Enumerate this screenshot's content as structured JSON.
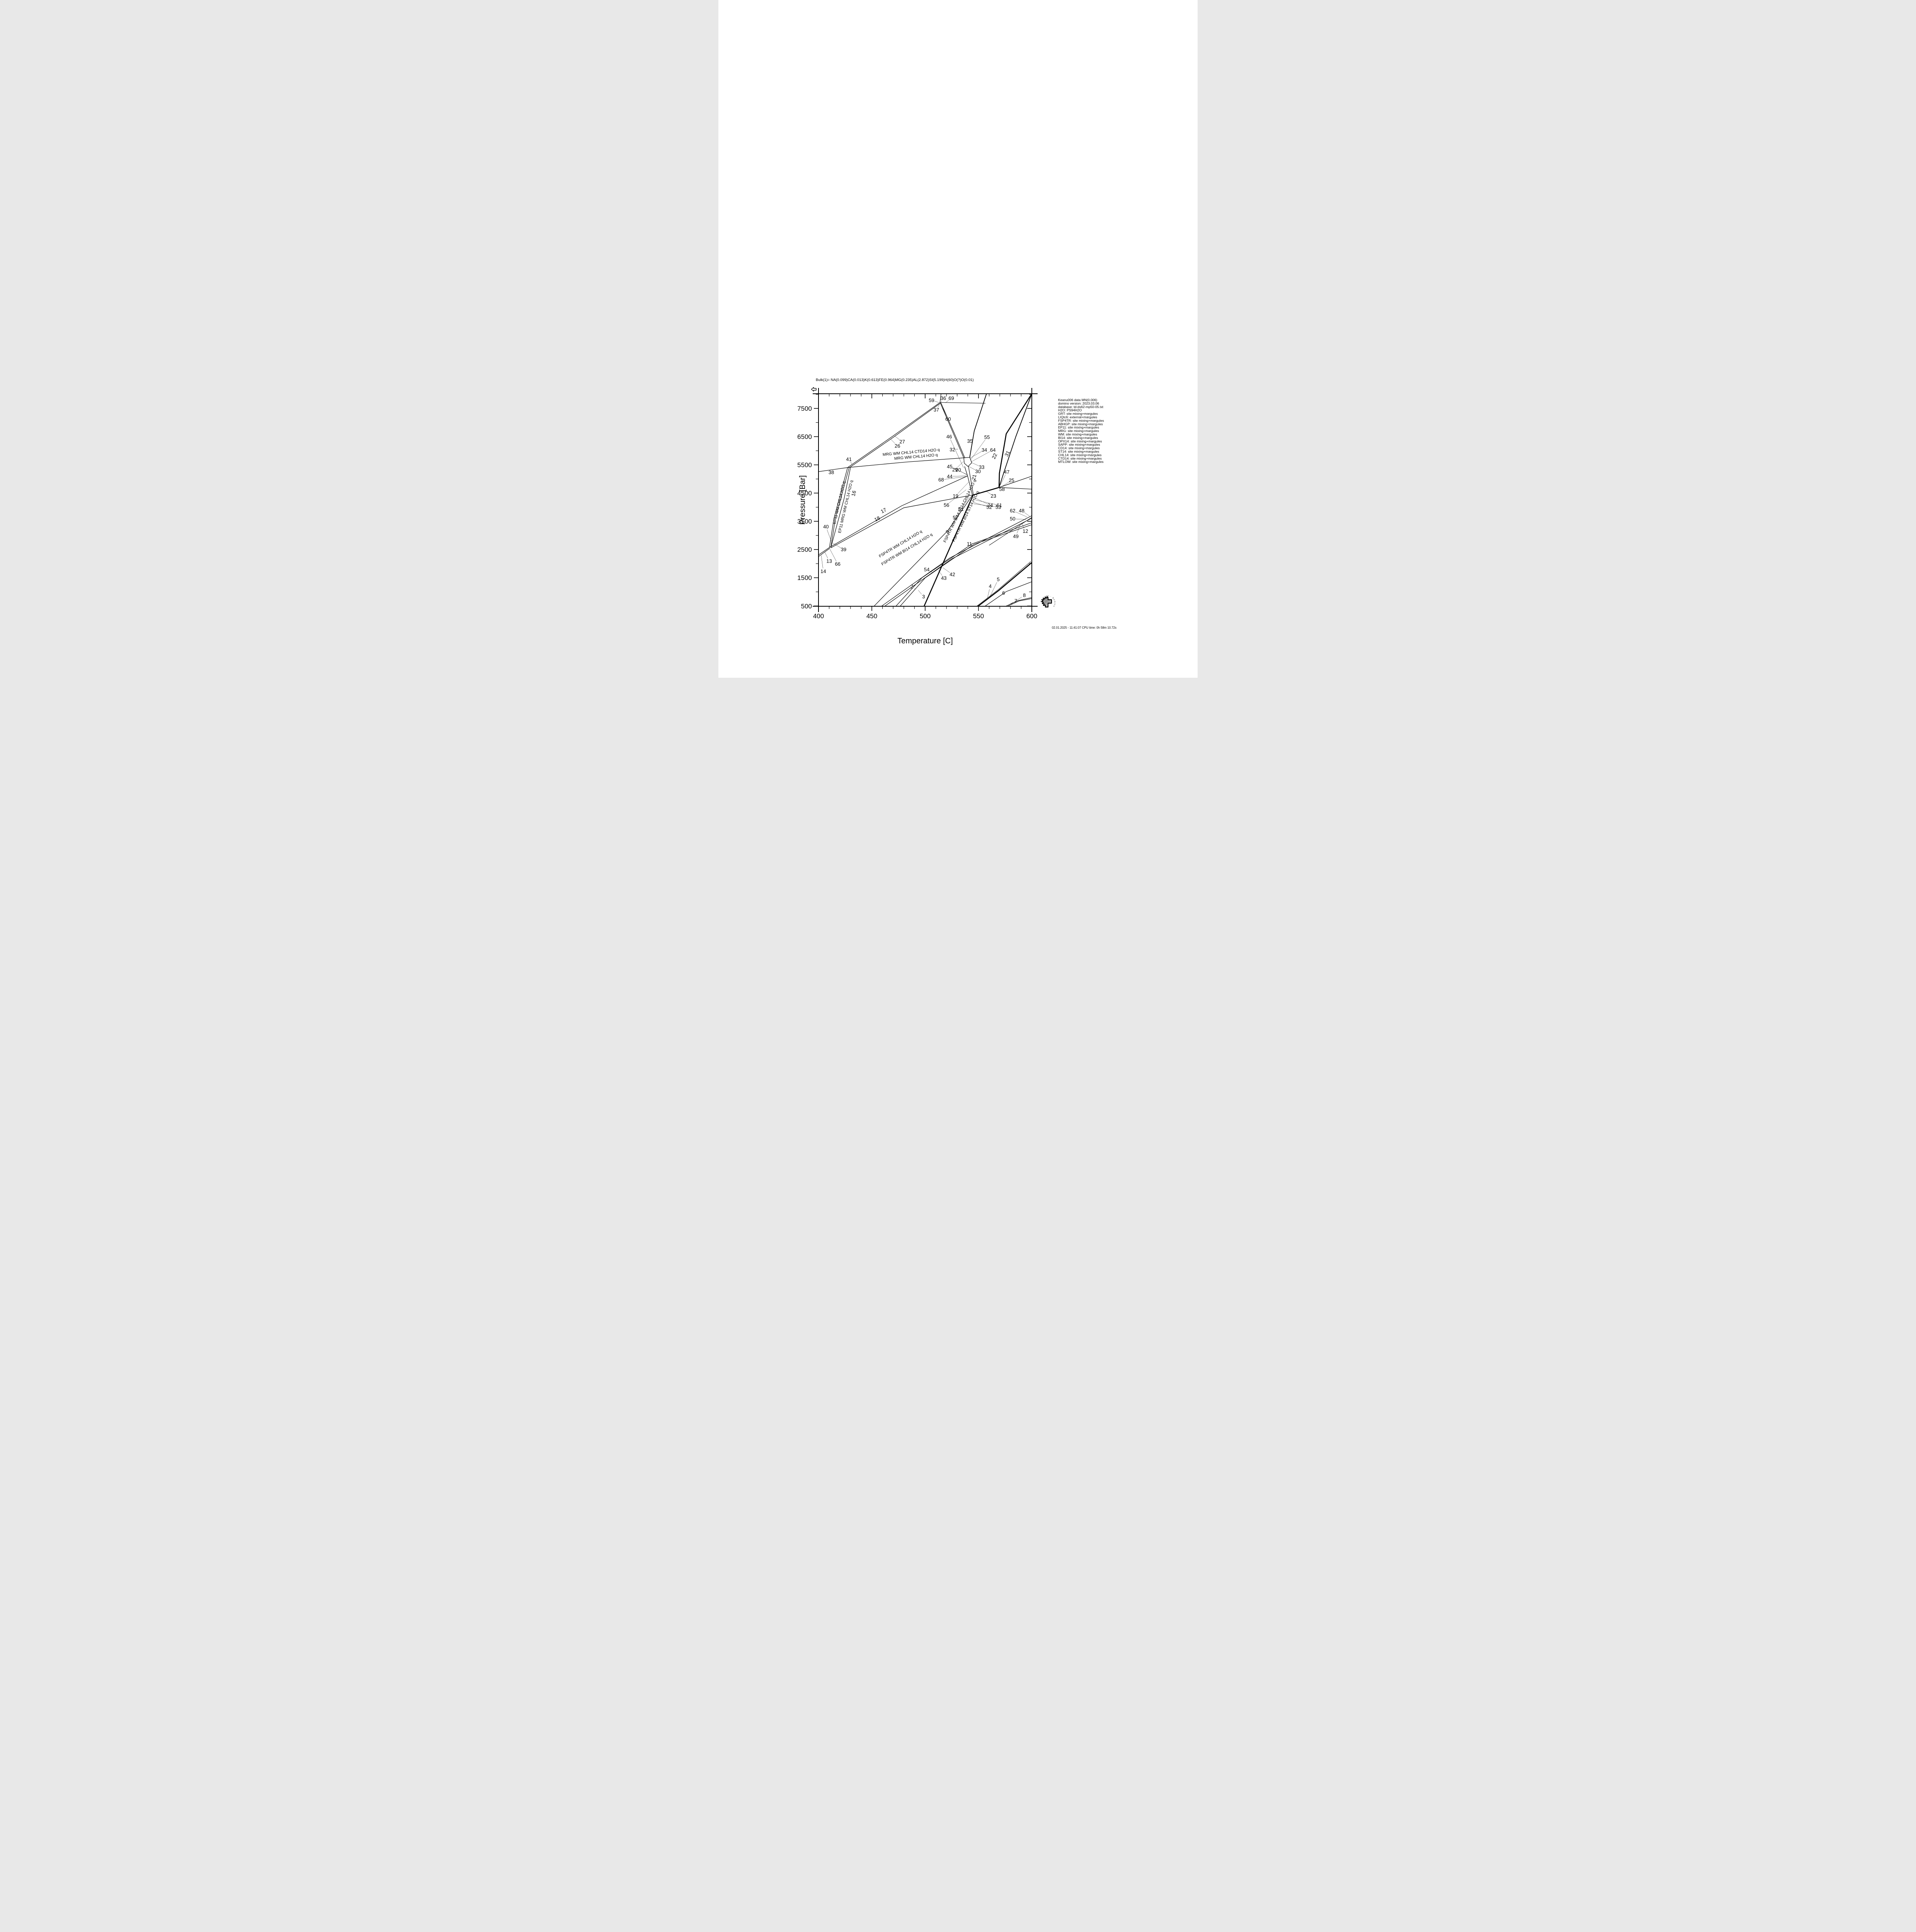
{
  "page": {
    "bg": "#ffffff",
    "ink": "#000000",
    "logo_gray": "#9a9a9a"
  },
  "title": "Bulk(1)= NA(0.099)CA(0.013)K(0.613)FE(0.964)MG(0.235)AL(2.872)SI(5.199)H(60)O(?)O(0.01)",
  "footer": "02.01.2025 - 11:41:07  CPU time:    0h 58m 10.72s",
  "logo_text": "Theriak - Domino",
  "info_panel": {
    "lines": [
      "Keanu006 data MN(0.006)",
      "domino version: 2023.03.06",
      "database: td-ds62-mp50-05.txt",
      "H2O: PS94H2O",
      "GRT: site mixing+margules",
      "LIQtc6: external+margules",
      "FSP4TR: site mixing+margules",
      "ABHGP: site mixing+margules",
      "EP11: site mixing+margules",
      "MRG: site mixing+margules",
      "WM: site mixing+margules",
      "BI14: site mixing+margules",
      "OPX14: site mixing+margules",
      "SAPP: site mixing+margules",
      "CD14: site mixing+margules",
      "ST14: site mixing+margules",
      "CHL14: site mixing+margules",
      "CTD14: site mixing+margules",
      "MTLOW: site mixing+margules"
    ]
  },
  "chart_data": {
    "type": "line",
    "title": "Bulk(1)= NA(0.099)CA(0.013)K(0.613)FE(0.964)MG(0.235)AL(2.872)SI(5.199)H(60)O(?)O(0.01)",
    "xlabel": "Temperature [C]",
    "ylabel": "Pressure [Bar]",
    "xlim": [
      400,
      600
    ],
    "ylim": [
      490,
      8020
    ],
    "x_major_ticks": [
      400,
      450,
      500,
      550,
      600
    ],
    "x_minor_step": 10,
    "y_major_ticks": [
      500,
      1500,
      2500,
      3500,
      4500,
      5500,
      6500,
      7500
    ],
    "y_minor_step": 500,
    "grid": false,
    "curves": [
      {
        "id": "l38",
        "w": 1.2,
        "pts": [
          [
            400,
            5260
          ],
          [
            427.3,
            5405
          ]
        ]
      },
      {
        "id": "s26a",
        "w": 1.2,
        "pts": [
          [
            427.3,
            5405
          ],
          [
            469,
            6500
          ],
          [
            514,
            7712
          ]
        ]
      },
      {
        "id": "s26b",
        "w": 1.2,
        "pts": [
          [
            428.6,
            5392
          ],
          [
            470.2,
            6478
          ],
          [
            514.5,
            7692
          ]
        ]
      },
      {
        "id": "ltop",
        "w": 1.2,
        "pts": [
          [
            514,
            7712
          ],
          [
            514.9,
            8020
          ]
        ]
      },
      {
        "id": "l3669",
        "w": 1,
        "pts": [
          [
            514,
            7712
          ],
          [
            556.5,
            7685
          ]
        ]
      },
      {
        "id": "l35",
        "w": 1.8,
        "pts": [
          [
            557.5,
            8020
          ],
          [
            546,
            6700
          ],
          [
            541.8,
            5770
          ]
        ]
      },
      {
        "id": "s37a",
        "w": 1.2,
        "pts": [
          [
            514,
            7712
          ],
          [
            527.5,
            6520
          ],
          [
            536.2,
            5748
          ]
        ]
      },
      {
        "id": "s37b",
        "w": 1.2,
        "pts": [
          [
            514.8,
            7698
          ],
          [
            528.6,
            6512
          ],
          [
            537.3,
            5740
          ]
        ]
      },
      {
        "id": "lmrg",
        "w": 1.2,
        "pts": [
          [
            427.3,
            5405
          ],
          [
            482,
            5600
          ],
          [
            536.2,
            5748
          ]
        ]
      },
      {
        "id": "ep11a",
        "w": 1.2,
        "pts": [
          [
            427.3,
            5405
          ],
          [
            414.5,
            3600
          ],
          [
            410.3,
            2575
          ]
        ]
      },
      {
        "id": "ep11b",
        "w": 1.2,
        "pts": [
          [
            428.7,
            5398
          ],
          [
            415.8,
            3598
          ],
          [
            411.6,
            2572
          ]
        ]
      },
      {
        "id": "l16",
        "w": 1.2,
        "pts": [
          [
            430,
            5402
          ],
          [
            424,
            4300
          ],
          [
            411.6,
            2572
          ]
        ]
      },
      {
        "id": "s13a",
        "w": 1.2,
        "pts": [
          [
            410.3,
            2575
          ],
          [
            400,
            2310
          ]
        ]
      },
      {
        "id": "s13b",
        "w": 1.2,
        "pts": [
          [
            410.6,
            2545
          ],
          [
            400,
            2250
          ]
        ]
      },
      {
        "id": "l17",
        "w": 1.2,
        "pts": [
          [
            410.3,
            2575
          ],
          [
            478,
            4050
          ],
          [
            539.8,
            5108
          ]
        ]
      },
      {
        "id": "l18",
        "w": 1.2,
        "pts": [
          [
            411.6,
            2560
          ],
          [
            480,
            3980
          ],
          [
            544.3,
            4430
          ]
        ]
      },
      {
        "id": "l44",
        "w": 1.2,
        "pts": [
          [
            539.8,
            5108
          ],
          [
            537,
            5445
          ]
        ]
      },
      {
        "id": "l19",
        "w": 1.2,
        "pts": [
          [
            539.8,
            5108
          ],
          [
            544.3,
            4430
          ]
        ]
      },
      {
        "id": "s21b",
        "w": 1.2,
        "pts": [
          [
            540.6,
            5440
          ],
          [
            545.2,
            4435
          ]
        ]
      },
      {
        "id": "pent",
        "w": 1.2,
        "closed": true,
        "pts": [
          [
            536.2,
            5748
          ],
          [
            541.8,
            5768
          ],
          [
            543.7,
            5575
          ],
          [
            540.2,
            5442
          ],
          [
            536.7,
            5558
          ]
        ]
      },
      {
        "id": "thick22",
        "w": 2.6,
        "pts": [
          [
            600,
            8020
          ],
          [
            576,
            6600
          ],
          [
            569.6,
            5200
          ],
          [
            569.3,
            4700
          ],
          [
            545,
            4432
          ],
          [
            499,
            490
          ]
        ]
      },
      {
        "id": "l31",
        "w": 1.8,
        "pts": [
          [
            600,
            8020
          ],
          [
            585,
            6500
          ],
          [
            573.5,
            5200
          ],
          [
            569.3,
            4700
          ]
        ]
      },
      {
        "id": "l47",
        "w": 1.2,
        "pts": [
          [
            569.3,
            4700
          ],
          [
            600,
            5100
          ]
        ]
      },
      {
        "id": "l25",
        "w": 1.2,
        "pts": [
          [
            569.3,
            4700
          ],
          [
            600,
            4640
          ]
        ]
      },
      {
        "id": "l9",
        "w": 1.2,
        "pts": [
          [
            452,
            490
          ],
          [
            521,
            3160
          ],
          [
            544.3,
            4425
          ]
        ]
      },
      {
        "id": "s11a",
        "w": 1.2,
        "pts": [
          [
            459,
            490
          ],
          [
            523,
            2200
          ],
          [
            600,
            3700
          ]
        ]
      },
      {
        "id": "s11b",
        "w": 1.2,
        "pts": [
          [
            462,
            490
          ],
          [
            525,
            2170
          ],
          [
            600,
            3612
          ]
        ]
      },
      {
        "id": "c1a",
        "w": 1.2,
        "pts": [
          [
            472.5,
            490
          ],
          [
            497,
            1500
          ],
          [
            544,
            2700
          ],
          [
            600,
            3450
          ]
        ]
      },
      {
        "id": "c1b",
        "w": 1.2,
        "pts": [
          [
            476.5,
            490
          ],
          [
            500,
            1495
          ],
          [
            546,
            2690
          ],
          [
            600,
            3380
          ]
        ]
      },
      {
        "id": "l49",
        "w": 1,
        "pts": [
          [
            560,
            2650
          ],
          [
            600,
            3640
          ]
        ]
      },
      {
        "id": "c45a",
        "w": 2.6,
        "pts": [
          [
            549.5,
            490
          ],
          [
            569,
            1050
          ],
          [
            600,
            2040
          ]
        ]
      },
      {
        "id": "c45b",
        "w": 1,
        "pts": [
          [
            548.3,
            490
          ],
          [
            567.8,
            1055
          ],
          [
            599,
            2075
          ]
        ]
      },
      {
        "id": "c6",
        "w": 1.2,
        "pts": [
          [
            556,
            490
          ],
          [
            576,
            1010
          ],
          [
            600,
            1360
          ]
        ]
      },
      {
        "id": "c78a",
        "w": 1.2,
        "pts": [
          [
            575.5,
            490
          ],
          [
            587,
            690
          ],
          [
            600,
            800
          ]
        ]
      },
      {
        "id": "c78b",
        "w": 1.2,
        "pts": [
          [
            577.2,
            490
          ],
          [
            588,
            678
          ],
          [
            600,
            762
          ]
        ]
      }
    ],
    "field_labels": [
      {
        "n": "59",
        "T": 506,
        "P": 7790,
        "t": [
          512.8,
          7712
        ]
      },
      {
        "n": "36",
        "T": 517,
        "P": 7862,
        "t": [
          514.8,
          7725
        ]
      },
      {
        "n": "69",
        "T": 524.5,
        "P": 7862,
        "t": [
          519,
          7698
        ]
      },
      {
        "n": "37",
        "T": 510.5,
        "P": 7450,
        "t": [
          513.4,
          7640
        ]
      },
      {
        "n": "60",
        "T": 521.5,
        "P": 7120,
        "t": [
          516.4,
          7520
        ]
      },
      {
        "n": "26",
        "T": 474,
        "P": 6170,
        "t": [
          467.5,
          6420
        ]
      },
      {
        "n": "27",
        "T": 478.5,
        "P": 6320,
        "t": [
          471.5,
          6520
        ]
      },
      {
        "n": "41",
        "T": 428.5,
        "P": 5700,
        "t": [
          431.5,
          5520
        ]
      },
      {
        "n": "38",
        "T": 412,
        "P": 5235
      },
      {
        "n": "46",
        "T": 522.5,
        "P": 6500,
        "t": [
          536,
          5400
        ]
      },
      {
        "n": "32",
        "T": 525.5,
        "P": 6040,
        "t": [
          530.8,
          6060
        ]
      },
      {
        "n": "35",
        "T": 542,
        "P": 6340,
        "t": [
          544.6,
          6270
        ]
      },
      {
        "n": "55",
        "T": 558,
        "P": 6480,
        "t": [
          542.8,
          5690
        ]
      },
      {
        "n": "34",
        "T": 555.5,
        "P": 6030,
        "t": [
          542.3,
          5745
        ]
      },
      {
        "n": "64",
        "T": 563.5,
        "P": 6030,
        "t": [
          543.3,
          5610
        ]
      },
      {
        "n": "33",
        "T": 553,
        "P": 5420,
        "t": [
          544,
          5572
        ]
      },
      {
        "n": "29",
        "T": 528,
        "P": 5330,
        "t": [
          535.9,
          5620
        ]
      },
      {
        "n": "30",
        "T": 549.5,
        "P": 5270,
        "t": [
          540.6,
          5450
        ]
      },
      {
        "n": "21",
        "T": 545.8,
        "P": 5060,
        "r": -76
      },
      {
        "n": "22",
        "T": 565,
        "P": 5810,
        "r": -64
      },
      {
        "n": "31",
        "T": 577,
        "P": 5900,
        "r": -64
      },
      {
        "n": "47",
        "T": 576.5,
        "P": 5250,
        "t": [
          570.6,
          4790
        ]
      },
      {
        "n": "25",
        "T": 581,
        "P": 4950,
        "t": [
          571.5,
          4725
        ]
      },
      {
        "n": "58",
        "T": 572,
        "P": 4640,
        "t": [
          568.6,
          4730
        ]
      },
      {
        "n": "23",
        "T": 564,
        "P": 4400,
        "t": [
          557,
          4570
        ]
      },
      {
        "n": "45",
        "T": 523,
        "P": 5440,
        "t": [
          538.9,
          5165
        ]
      },
      {
        "n": "20",
        "T": 531,
        "P": 5320,
        "t": [
          539.4,
          5140
        ]
      },
      {
        "n": "44",
        "T": 523,
        "P": 5090,
        "t": [
          538.9,
          5112
        ]
      },
      {
        "n": "68",
        "T": 515,
        "P": 4972,
        "t": [
          538.3,
          5085
        ]
      },
      {
        "n": "19",
        "T": 528.5,
        "P": 4400,
        "t": [
          541.2,
          4905
        ]
      },
      {
        "n": "56",
        "T": 520,
        "P": 4080,
        "t": [
          538.5,
          4620
        ]
      },
      {
        "n": "51",
        "T": 533.5,
        "P": 3930,
        "t": [
          542,
          4480
        ]
      },
      {
        "n": "57",
        "T": 528.5,
        "P": 3630,
        "t": [
          541.5,
          4360
        ]
      },
      {
        "n": "24",
        "T": 561,
        "P": 4070,
        "t": [
          546.5,
          4330
        ]
      },
      {
        "n": "61",
        "T": 569.5,
        "P": 4070,
        "t": [
          547.5,
          4250
        ]
      },
      {
        "n": "52",
        "T": 560,
        "P": 4005,
        "t": [
          544.5,
          4180
        ]
      },
      {
        "n": "53",
        "T": 568.5,
        "P": 4005,
        "t": [
          545.5,
          4120
        ]
      },
      {
        "n": "62",
        "T": 582,
        "P": 3880,
        "t": [
          595.5,
          3655
        ]
      },
      {
        "n": "48",
        "T": 590.5,
        "P": 3880,
        "t": [
          598,
          3680
        ]
      },
      {
        "n": "50",
        "T": 582,
        "P": 3590,
        "t": [
          594.5,
          3565
        ]
      },
      {
        "n": "12",
        "T": 594,
        "P": 3150,
        "t": [
          590.5,
          3430
        ]
      },
      {
        "n": "49",
        "T": 585,
        "P": 2970,
        "t": [
          589,
          3367
        ]
      },
      {
        "n": "11",
        "T": 541.5,
        "P": 2700,
        "t": [
          545,
          2620
        ]
      },
      {
        "n": "9",
        "T": 521,
        "P": 3130,
        "r": -48
      },
      {
        "n": "54",
        "T": 501.5,
        "P": 1790,
        "t": [
          506.5,
          1700
        ]
      },
      {
        "n": "43",
        "T": 517.5,
        "P": 1490,
        "t": [
          512.5,
          1765
        ]
      },
      {
        "n": "42",
        "T": 525.5,
        "P": 1620,
        "t": [
          516.5,
          1860
        ]
      },
      {
        "n": "2",
        "T": 487.5,
        "P": 1190,
        "t": [
          490.5,
          1100
        ]
      },
      {
        "n": "3",
        "T": 498.5,
        "P": 830,
        "t": [
          493.5,
          1060
        ]
      },
      {
        "n": "4",
        "T": 561,
        "P": 1200,
        "t": [
          558.5,
          800
        ]
      },
      {
        "n": "5",
        "T": 568.5,
        "P": 1440,
        "t": [
          560.5,
          810
        ]
      },
      {
        "n": "6",
        "T": 573.5,
        "P": 960
      },
      {
        "n": "7",
        "T": 585,
        "P": 680,
        "t": [
          578.5,
          545
        ]
      },
      {
        "n": "8",
        "T": 593,
        "P": 880,
        "t": [
          580.5,
          560
        ]
      },
      {
        "n": "13",
        "T": 410,
        "P": 2090,
        "t": [
          406,
          2400
        ]
      },
      {
        "n": "66",
        "T": 418,
        "P": 1990,
        "t": [
          410.6,
          2520
        ]
      },
      {
        "n": "14",
        "T": 404.5,
        "P": 1730,
        "t": [
          402.6,
          2290
        ]
      },
      {
        "n": "40",
        "T": 407,
        "P": 3310,
        "t": [
          411.9,
          2800
        ]
      },
      {
        "n": "39",
        "T": 423.5,
        "P": 2500,
        "t": [
          413.5,
          2730
        ]
      },
      {
        "n": "16",
        "T": 433,
        "P": 4490,
        "r": -76
      },
      {
        "n": "17",
        "T": 461,
        "P": 3880,
        "r": -27
      },
      {
        "n": "18",
        "T": 455,
        "P": 3590,
        "r": -27
      }
    ],
    "line_labels": [
      {
        "text": "MRG WM CHL14 CTD14 H2O q",
        "T": 487,
        "P": 5905,
        "r": -5
      },
      {
        "text": "MRG WM CHL14 H2O q",
        "T": 491.5,
        "P": 5745,
        "r": -5
      },
      {
        "text": "EP11 WM CHL14 H2O q",
        "T": 420.5,
        "P": 4150,
        "r": -77
      },
      {
        "text": "EP11 MRG WM CHL14 H2O q",
        "T": 426.5,
        "P": 4010,
        "r": -77
      },
      {
        "text": "FSP4TR WM CHL14 H2O q",
        "T": 477.5,
        "P": 2665,
        "r": -31
      },
      {
        "text": "FSP4TR WM BI14 CHL14 H2O q",
        "T": 483.5,
        "P": 2470,
        "r": -31
      },
      {
        "text": "FSP4TR WM BI14 ST14 CHL14 H2O q",
        "T": 533.5,
        "P": 3845,
        "r": -64
      },
      {
        "text": "FSP4TR WM BI14 ST14 H2O q",
        "T": 539,
        "P": 3655,
        "r": -64
      }
    ]
  }
}
